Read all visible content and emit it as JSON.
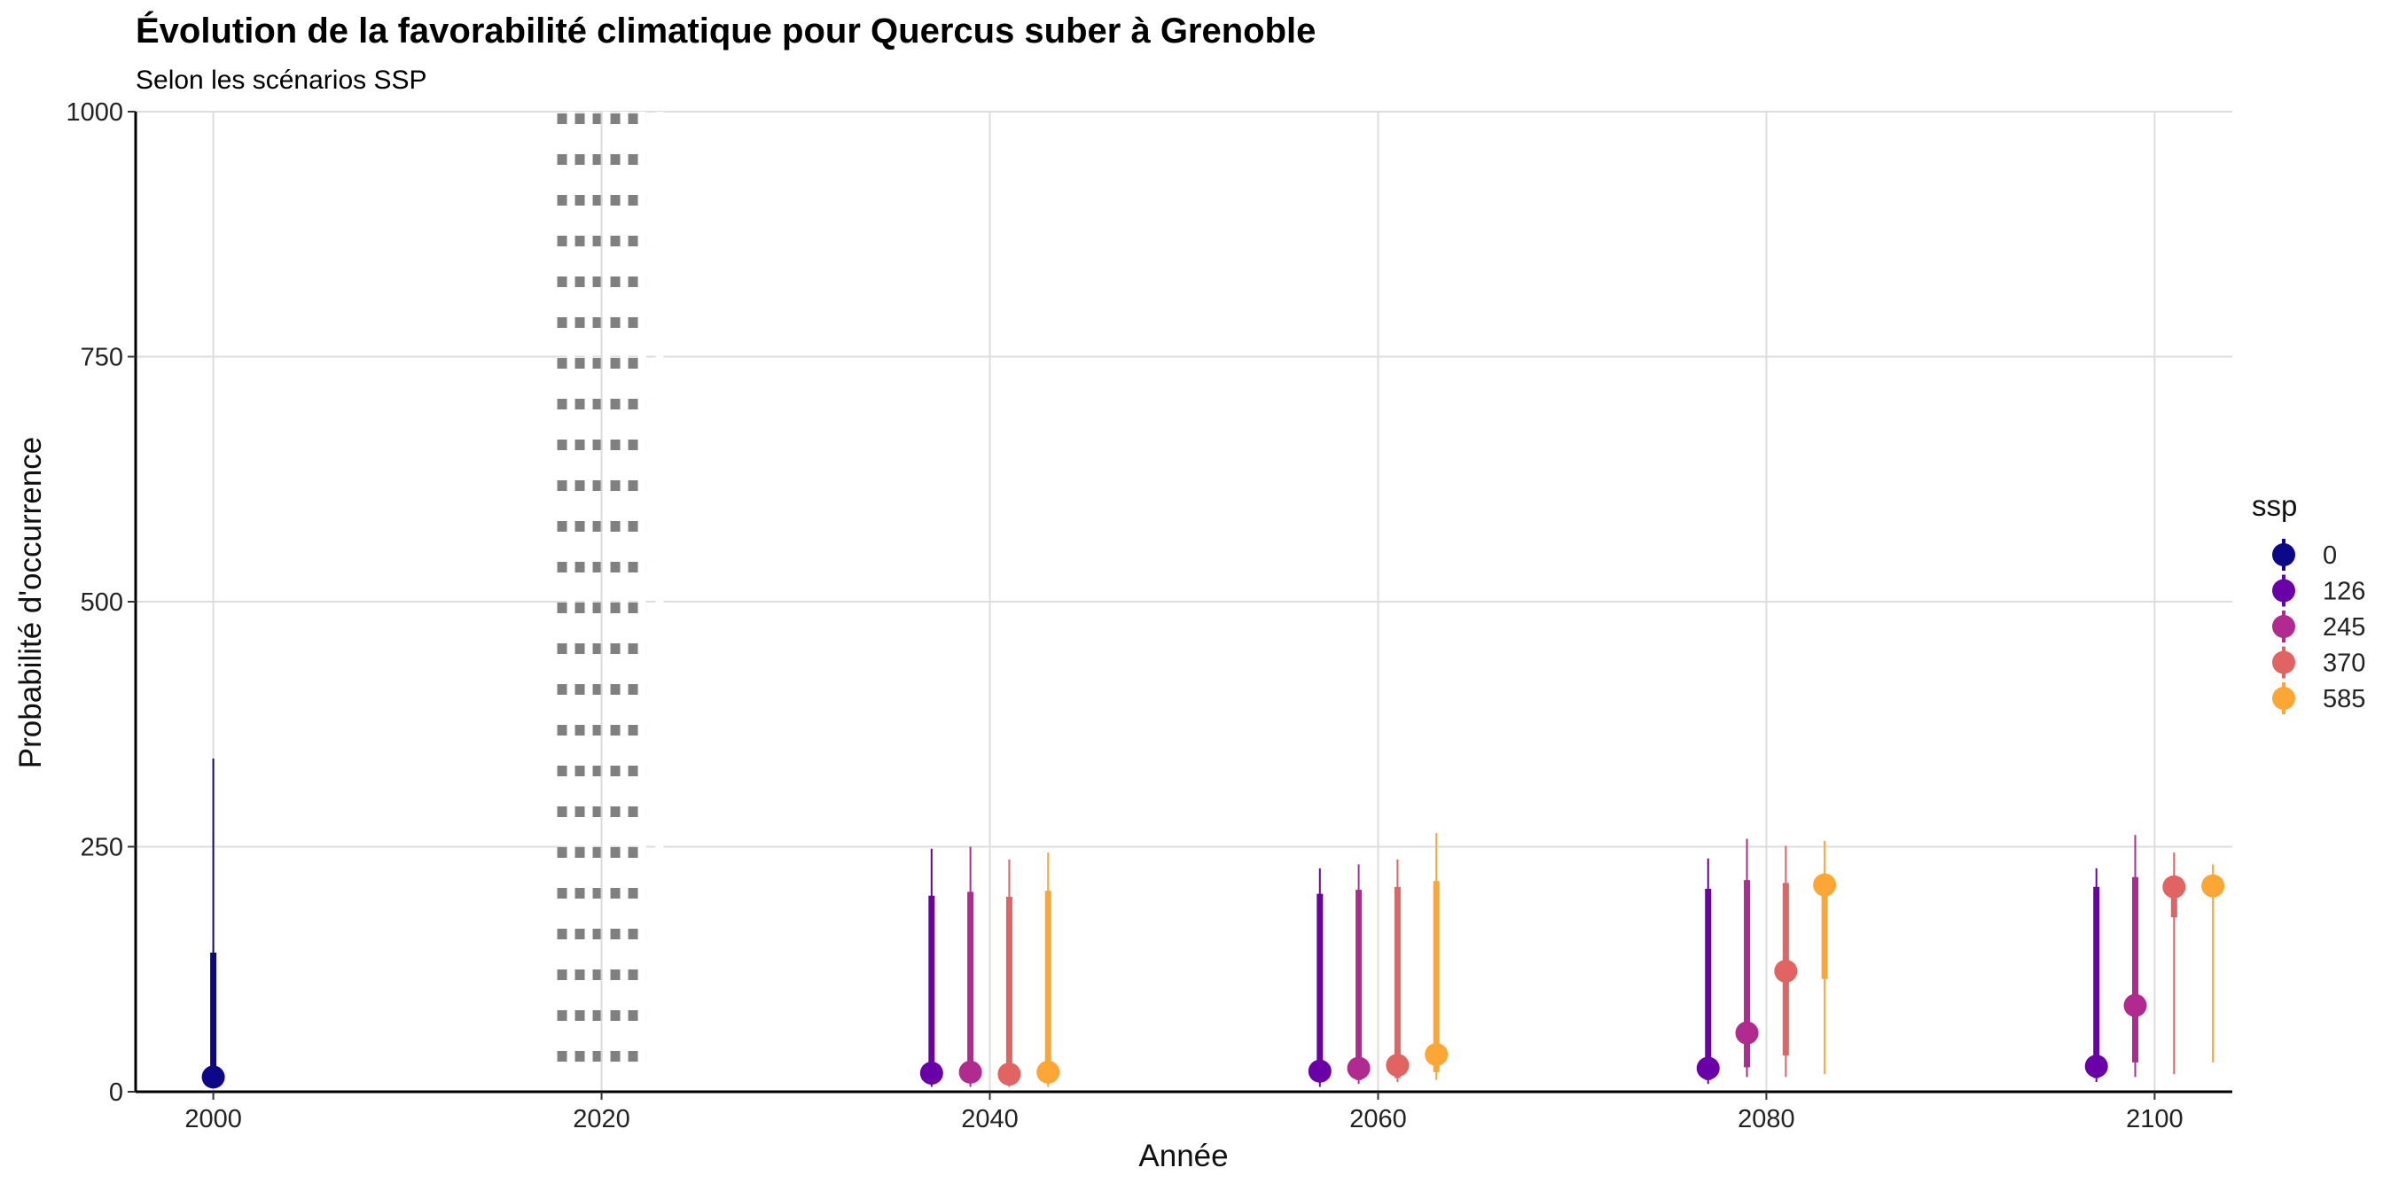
{
  "chart_data": {
    "type": "scatter",
    "title": "Évolution de la favorabilité climatique pour Quercus suber à Grenoble",
    "subtitle": "Selon les scénarios SSP",
    "xlabel": "Année",
    "ylabel": "Probabilité d'occurrence",
    "xlim": [
      1996,
      2104
    ],
    "ylim": [
      0,
      1000
    ],
    "x_ticks": [
      "2000",
      "2020",
      "2040",
      "2060",
      "2080",
      "2100"
    ],
    "y_ticks": [
      "0",
      "250",
      "500",
      "750",
      "1000"
    ],
    "grid": true,
    "reference_line": {
      "x": 2020,
      "style": "dotted"
    },
    "legend": {
      "title": "ssp",
      "position": "right",
      "labels": [
        "0",
        "126",
        "245",
        "370",
        "585"
      ]
    },
    "colors": {
      "0": "#0d0887",
      "126": "#6a00a8",
      "245": "#b12a90",
      "370": "#e16462",
      "585": "#fca636"
    },
    "series": [
      {
        "name": "0",
        "points": [
          {
            "x": 2000,
            "y": 15,
            "q_low": 5,
            "q_high": 142,
            "min": 5,
            "max": 340
          }
        ]
      },
      {
        "name": "126",
        "points": [
          {
            "x": 2037,
            "y": 19,
            "q_low": 10,
            "q_high": 200,
            "min": 5,
            "max": 248
          },
          {
            "x": 2057,
            "y": 21,
            "q_low": 10,
            "q_high": 202,
            "min": 5,
            "max": 228
          },
          {
            "x": 2077,
            "y": 24,
            "q_low": 12,
            "q_high": 207,
            "min": 8,
            "max": 238
          },
          {
            "x": 2097,
            "y": 26,
            "q_low": 14,
            "q_high": 209,
            "min": 10,
            "max": 228
          }
        ]
      },
      {
        "name": "245",
        "points": [
          {
            "x": 2039,
            "y": 20,
            "q_low": 10,
            "q_high": 204,
            "min": 5,
            "max": 250
          },
          {
            "x": 2059,
            "y": 24,
            "q_low": 12,
            "q_high": 206,
            "min": 8,
            "max": 232
          },
          {
            "x": 2079,
            "y": 60,
            "q_low": 25,
            "q_high": 216,
            "min": 15,
            "max": 258
          },
          {
            "x": 2099,
            "y": 88,
            "q_low": 30,
            "q_high": 219,
            "min": 15,
            "max": 262
          }
        ]
      },
      {
        "name": "370",
        "points": [
          {
            "x": 2041,
            "y": 18,
            "q_low": 10,
            "q_high": 199,
            "min": 5,
            "max": 237
          },
          {
            "x": 2061,
            "y": 27,
            "q_low": 14,
            "q_high": 209,
            "min": 10,
            "max": 237
          },
          {
            "x": 2081,
            "y": 123,
            "q_low": 37,
            "q_high": 213,
            "min": 15,
            "max": 251
          },
          {
            "x": 2101,
            "y": 209,
            "q_low": 178,
            "q_high": 215,
            "min": 18,
            "max": 244
          }
        ]
      },
      {
        "name": "585",
        "points": [
          {
            "x": 2043,
            "y": 20,
            "q_low": 10,
            "q_high": 205,
            "min": 5,
            "max": 244
          },
          {
            "x": 2063,
            "y": 38,
            "q_low": 20,
            "q_high": 215,
            "min": 12,
            "max": 264
          },
          {
            "x": 2083,
            "y": 211,
            "q_low": 115,
            "q_high": 214,
            "min": 18,
            "max": 256
          },
          {
            "x": 2103,
            "y": 210,
            "q_low": 205,
            "q_high": 214,
            "min": 30,
            "max": 232
          }
        ]
      }
    ]
  }
}
